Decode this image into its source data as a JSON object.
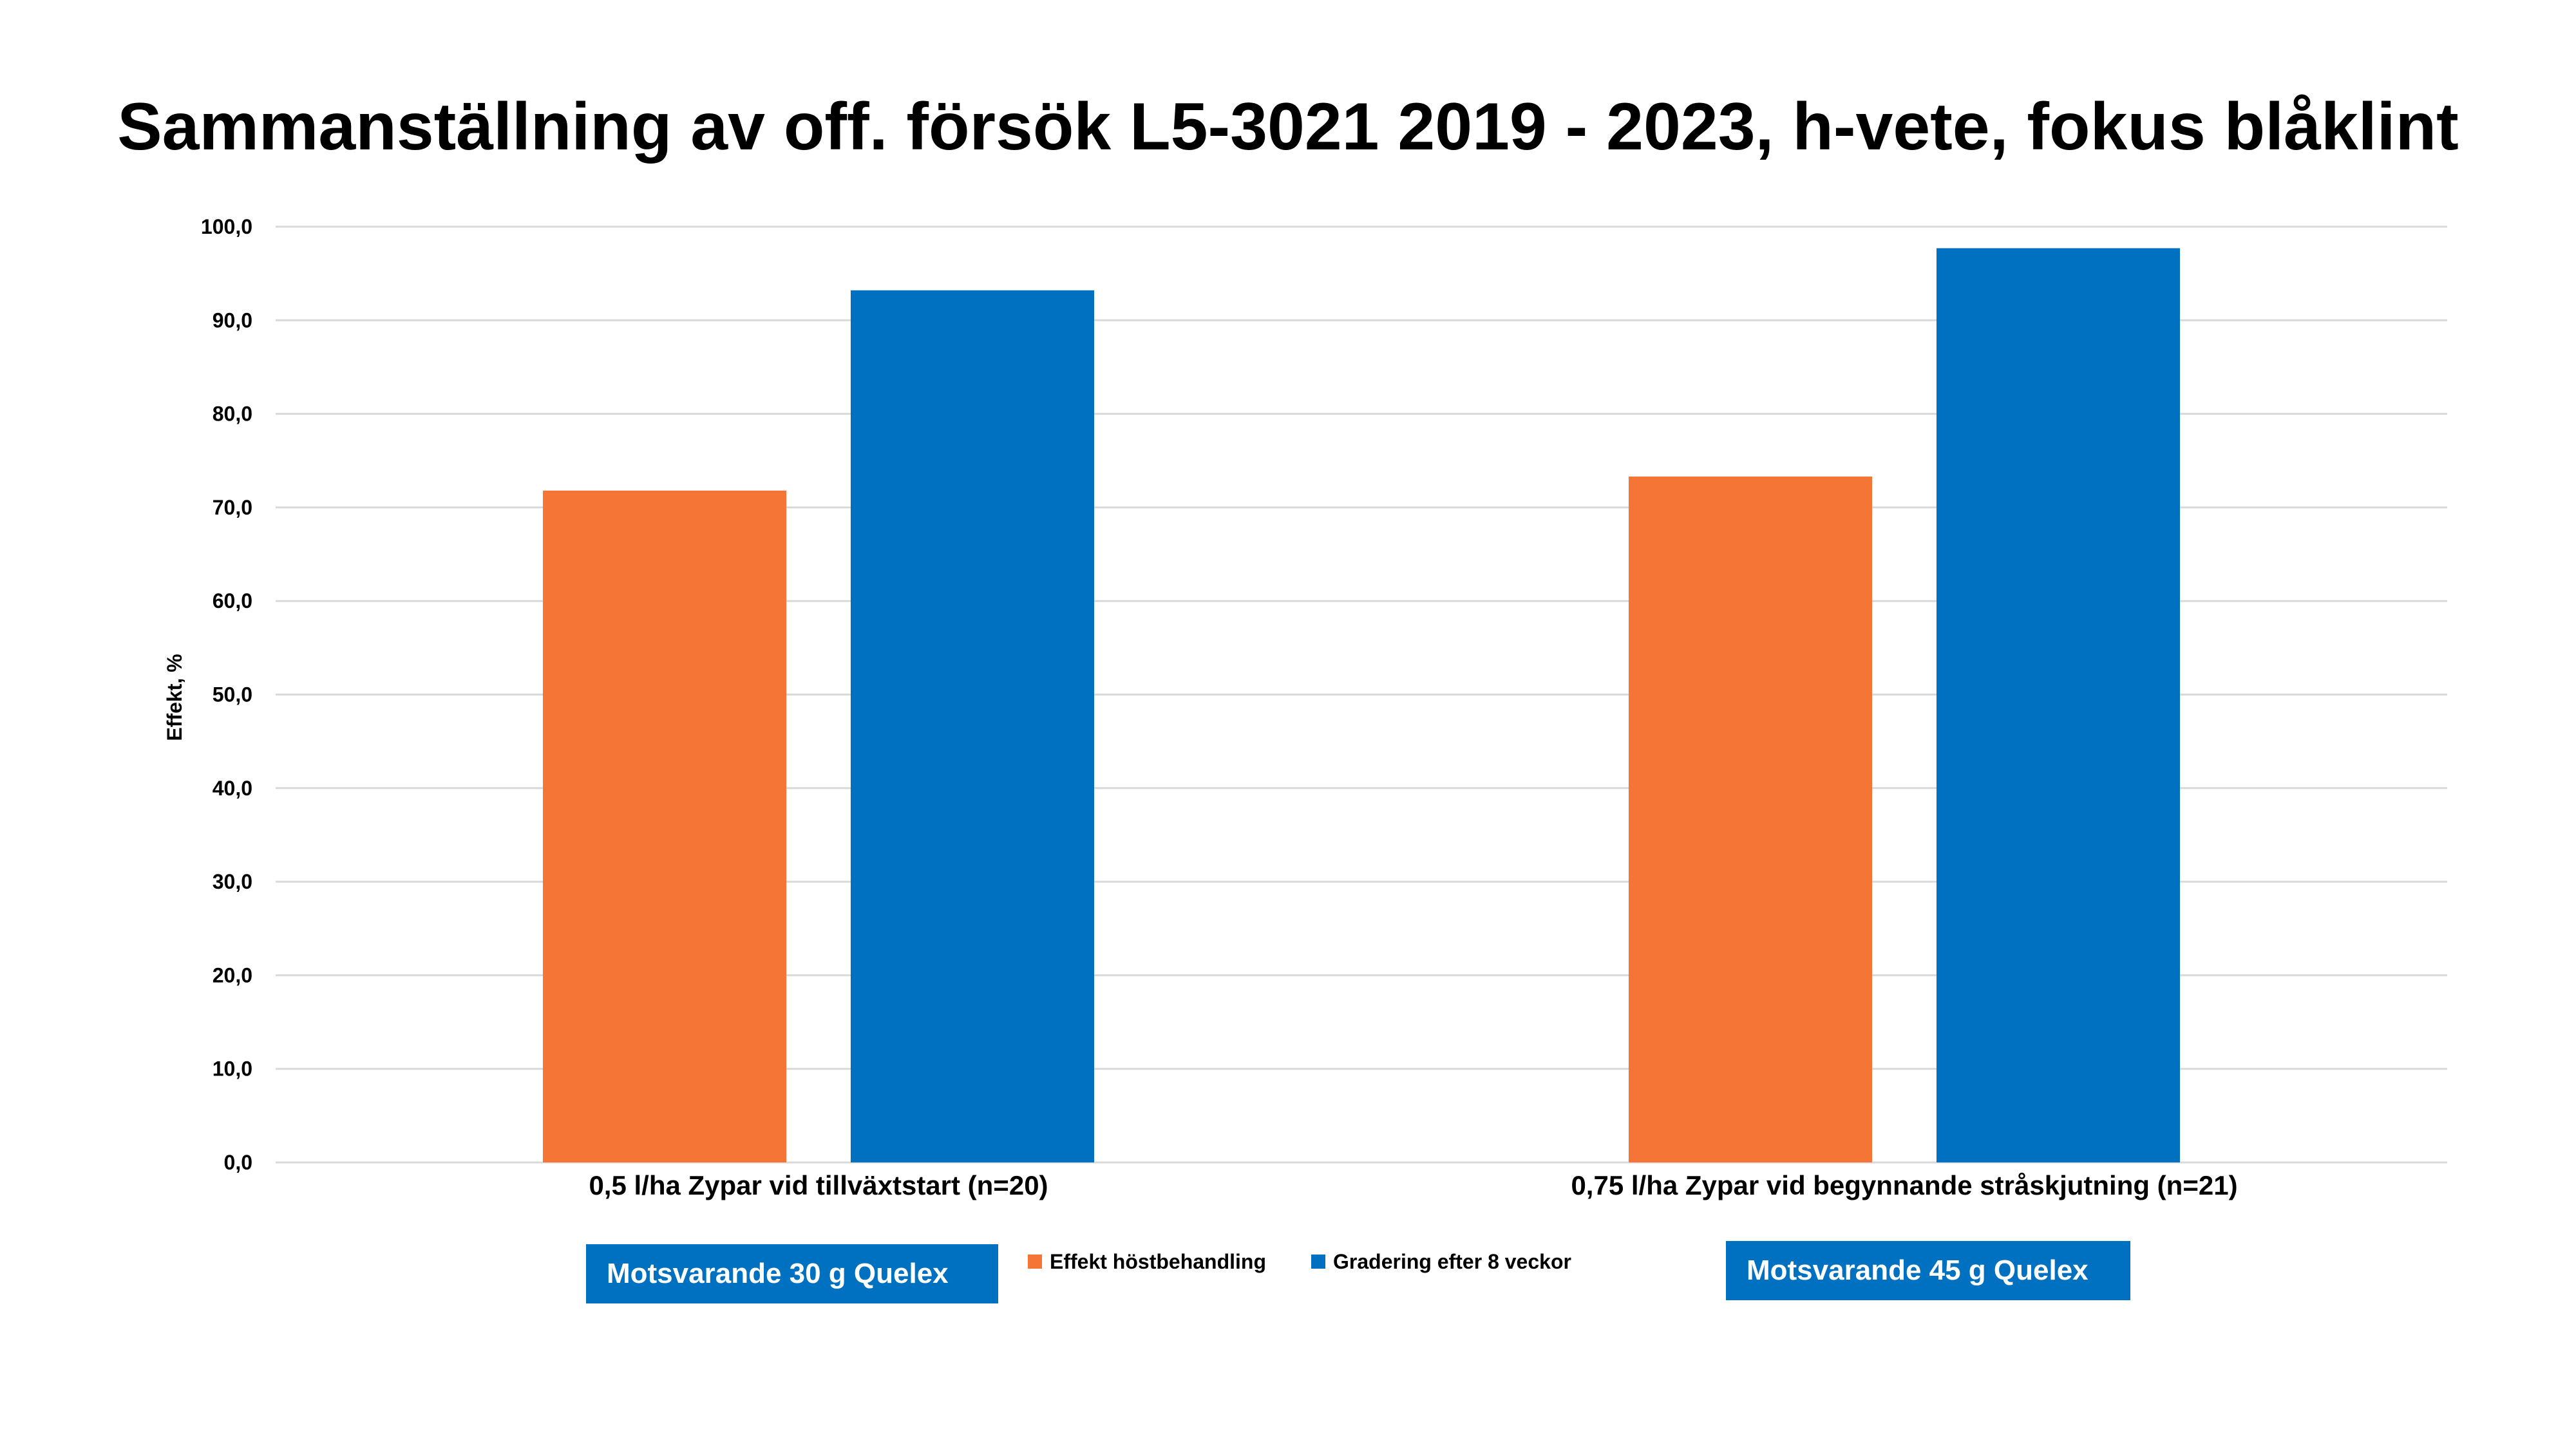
{
  "chart_data": {
    "type": "bar",
    "title": "Sammanställning av off. försök L5-3021 2019 - 2023, h-vete, fokus blåklint",
    "ylabel": "Effekt, %",
    "xlabel": "",
    "ylim": [
      0,
      100
    ],
    "ytick_step": 10,
    "ytick_labels": [
      "0,0",
      "10,0",
      "20,0",
      "30,0",
      "40,0",
      "50,0",
      "60,0",
      "70,0",
      "80,0",
      "90,0",
      "100,0"
    ],
    "grid": true,
    "categories": [
      "0,5 l/ha Zypar vid tillväxtstart (n=20)",
      "0,75 l/ha Zypar vid begynnande stråskjutning (n=21)"
    ],
    "series": [
      {
        "name": "Effekt höstbehandling",
        "color": "#f47535",
        "values": [
          71.8,
          73.3
        ]
      },
      {
        "name": "Gradering efter 8 veckor",
        "color": "#0070c0",
        "values": [
          93.2,
          97.7
        ]
      }
    ],
    "legend_position": "bottom-center"
  },
  "notes": {
    "left": "Motsvarande 30 g Quelex",
    "right": "Motsvarande 45 g Quelex",
    "color": "#0070c0"
  }
}
